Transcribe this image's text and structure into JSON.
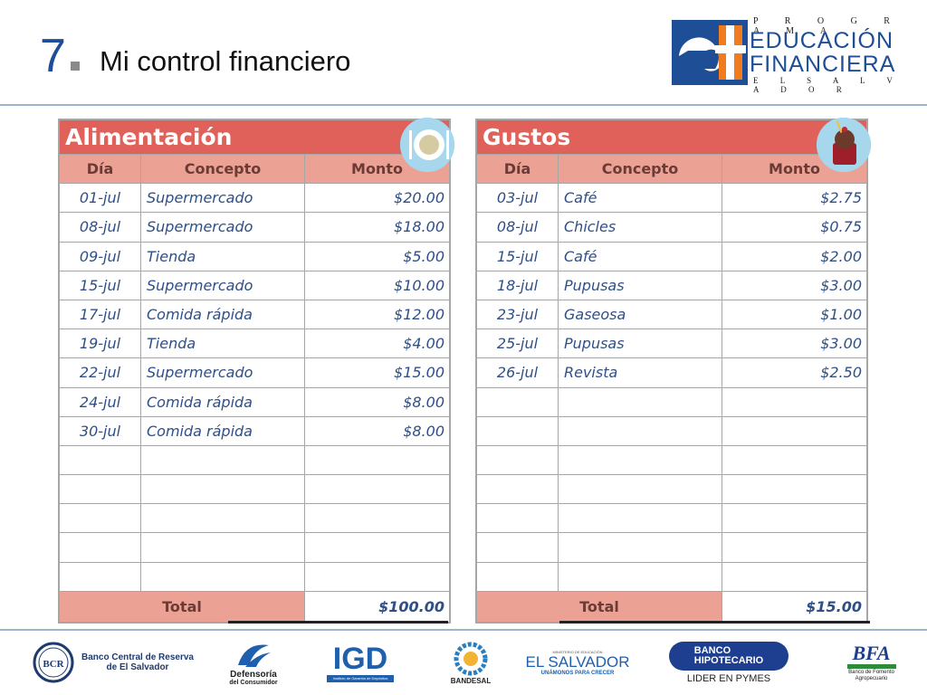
{
  "header": {
    "number": "7",
    "title": "Mi control financiero"
  },
  "logo": {
    "top": "P R O G R A M A",
    "line1": "EDUCACIÓN",
    "line2": "FINANCIERA",
    "bottom": "E L   S A L V A D O R",
    "mark_icon": "ef-logo-mark"
  },
  "tables": {
    "left": {
      "title": "Alimentación",
      "icon": "plate-cutlery-icon",
      "headers": [
        "Día",
        "Concepto",
        "Monto"
      ],
      "rows": [
        [
          "01-jul",
          "Supermercado",
          "$20.00"
        ],
        [
          "08-jul",
          "Supermercado",
          "$18.00"
        ],
        [
          "09-jul",
          "Tienda",
          "$5.00"
        ],
        [
          "15-jul",
          "Supermercado",
          "$10.00"
        ],
        [
          "17-jul",
          "Comida rápida",
          "$12.00"
        ],
        [
          "19-jul",
          "Tienda",
          "$4.00"
        ],
        [
          "22-jul",
          "Supermercado",
          "$15.00"
        ],
        [
          "24-jul",
          "Comida rápida",
          "$8.00"
        ],
        [
          "30-jul",
          "Comida rápida",
          "$8.00"
        ]
      ],
      "empty_rows": 5,
      "total_label": "Total",
      "total_value": "$100.00"
    },
    "right": {
      "title": "Gustos",
      "icon": "dessert-cup-icon",
      "headers": [
        "Día",
        "Concepto",
        "Monto"
      ],
      "rows": [
        [
          "03-jul",
          "Café",
          "$2.75"
        ],
        [
          "08-jul",
          "Chicles",
          "$0.75"
        ],
        [
          "15-jul",
          "Café",
          "$2.00"
        ],
        [
          "18-jul",
          "Pupusas",
          "$3.00"
        ],
        [
          "23-jul",
          "Gaseosa",
          "$1.00"
        ],
        [
          "25-jul",
          "Pupusas",
          "$3.00"
        ],
        [
          "26-jul",
          "Revista",
          "$2.50"
        ]
      ],
      "empty_rows": 7,
      "total_label": "Total",
      "total_value": "$15.00"
    }
  },
  "sponsors": [
    {
      "name": "bcr-logo",
      "line1": "Banco Central de Reserva",
      "line2": "de El Salvador"
    },
    {
      "name": "defensoria-logo",
      "line1": "Defensoría",
      "line2": "del Consumidor"
    },
    {
      "name": "igd-logo",
      "line1": "IGD",
      "line2": "Instituto de Garantía de Depósitos"
    },
    {
      "name": "bandesal-logo",
      "line1": "BANDESAL"
    },
    {
      "name": "el-salvador-logo",
      "line1": "EL SALVADOR",
      "line2": "UNÁMONOS PARA CRECER",
      "small": "MINISTERIO DE EDUCACIÓN"
    },
    {
      "name": "banco-hipotecario-logo",
      "line1": "BANCO",
      "line2": "HIPOTECARIO",
      "line3": "LIDER EN PYMES"
    },
    {
      "name": "bfa-logo",
      "line1": "BFA",
      "line2": "Banco de Fomento",
      "line3": "Agropecuario"
    }
  ],
  "colors": {
    "title_red": "#e0605a",
    "header_salmon": "#eca195",
    "data_blue": "#2f4f86",
    "brand_blue": "#1e4e95",
    "brand_orange": "#f07c1e"
  }
}
